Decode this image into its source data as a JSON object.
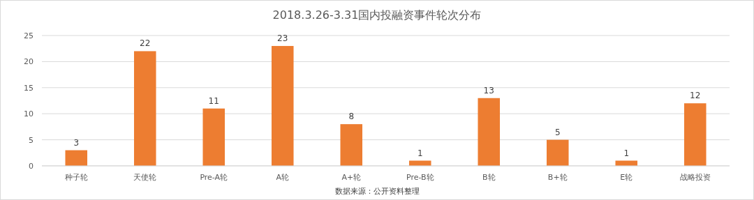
{
  "chart_data": {
    "type": "bar",
    "title": "2018.3.26-3.31国内投融资事件轮次分布",
    "categories": [
      "种子轮",
      "天使轮",
      "Pre-A轮",
      "A轮",
      "A+轮",
      "Pre-B轮",
      "B轮",
      "B+轮",
      "E轮",
      "战略投资"
    ],
    "values": [
      3,
      22,
      11,
      23,
      8,
      1,
      13,
      5,
      1,
      12
    ],
    "color": "#ed7d31",
    "ylim": [
      0,
      25
    ],
    "yticks": [
      0,
      5,
      10,
      15,
      20,
      25
    ],
    "grid": "y",
    "data_labels": true,
    "annotations": [
      "数据来源：公开资料整理"
    ]
  }
}
